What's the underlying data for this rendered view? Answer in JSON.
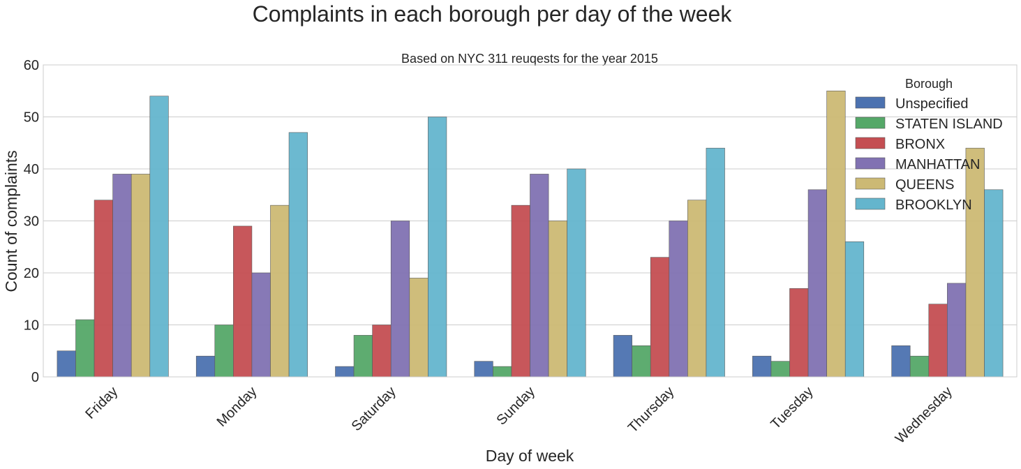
{
  "chart_data": {
    "type": "bar",
    "title": "Complaints in each borough per day of the week",
    "subtitle": "Based on NYC 311 reuqests for the year 2015",
    "xlabel": "Day of week",
    "ylabel": "Count of complaints",
    "ylim": [
      0,
      60
    ],
    "yticks": [
      0,
      10,
      20,
      30,
      40,
      50,
      60
    ],
    "grid": true,
    "legend": {
      "title": "Borough",
      "placement": "top-right"
    },
    "categories": [
      "Friday",
      "Monday",
      "Saturday",
      "Sunday",
      "Thursday",
      "Tuesday",
      "Wednesday"
    ],
    "series": [
      {
        "name": "Unspecified",
        "color": "#4c72b0",
        "values": [
          5,
          4,
          2,
          3,
          8,
          4,
          6
        ]
      },
      {
        "name": "STATEN ISLAND",
        "color": "#55a868",
        "values": [
          11,
          10,
          8,
          2,
          6,
          3,
          4
        ]
      },
      {
        "name": "BRONX",
        "color": "#c44e52",
        "values": [
          34,
          29,
          10,
          33,
          23,
          17,
          14
        ]
      },
      {
        "name": "MANHATTAN",
        "color": "#8172b2",
        "values": [
          39,
          20,
          30,
          39,
          30,
          36,
          18
        ]
      },
      {
        "name": "QUEENS",
        "color": "#ccb974",
        "values": [
          39,
          33,
          19,
          30,
          34,
          55,
          44
        ]
      },
      {
        "name": "BROOKLYN",
        "color": "#64b5cd",
        "values": [
          54,
          47,
          50,
          40,
          44,
          26,
          36
        ]
      }
    ]
  }
}
